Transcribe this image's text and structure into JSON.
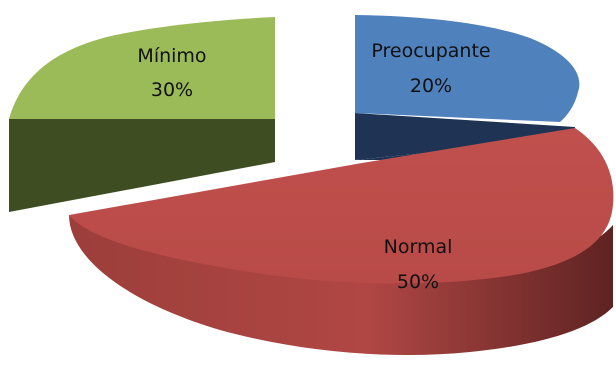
{
  "chart_data": {
    "type": "pie",
    "style": "3d-exploded",
    "slices": [
      {
        "label": "Preocupante",
        "value": 20,
        "percent_label": "20%",
        "colors": {
          "top": "#4f81bd",
          "side": "#22375a",
          "label": "#111111"
        }
      },
      {
        "label": "Normal",
        "value": 50,
        "percent_label": "50%",
        "colors": {
          "top": "#c0504d",
          "side": "#8a3431",
          "label": "#111111"
        }
      },
      {
        "label": "Mínimo",
        "value": 30,
        "percent_label": "30%",
        "colors": {
          "top": "#9bbb59",
          "side": "#4a5a28",
          "label": "#111111"
        }
      }
    ],
    "legend": "none",
    "title": ""
  }
}
